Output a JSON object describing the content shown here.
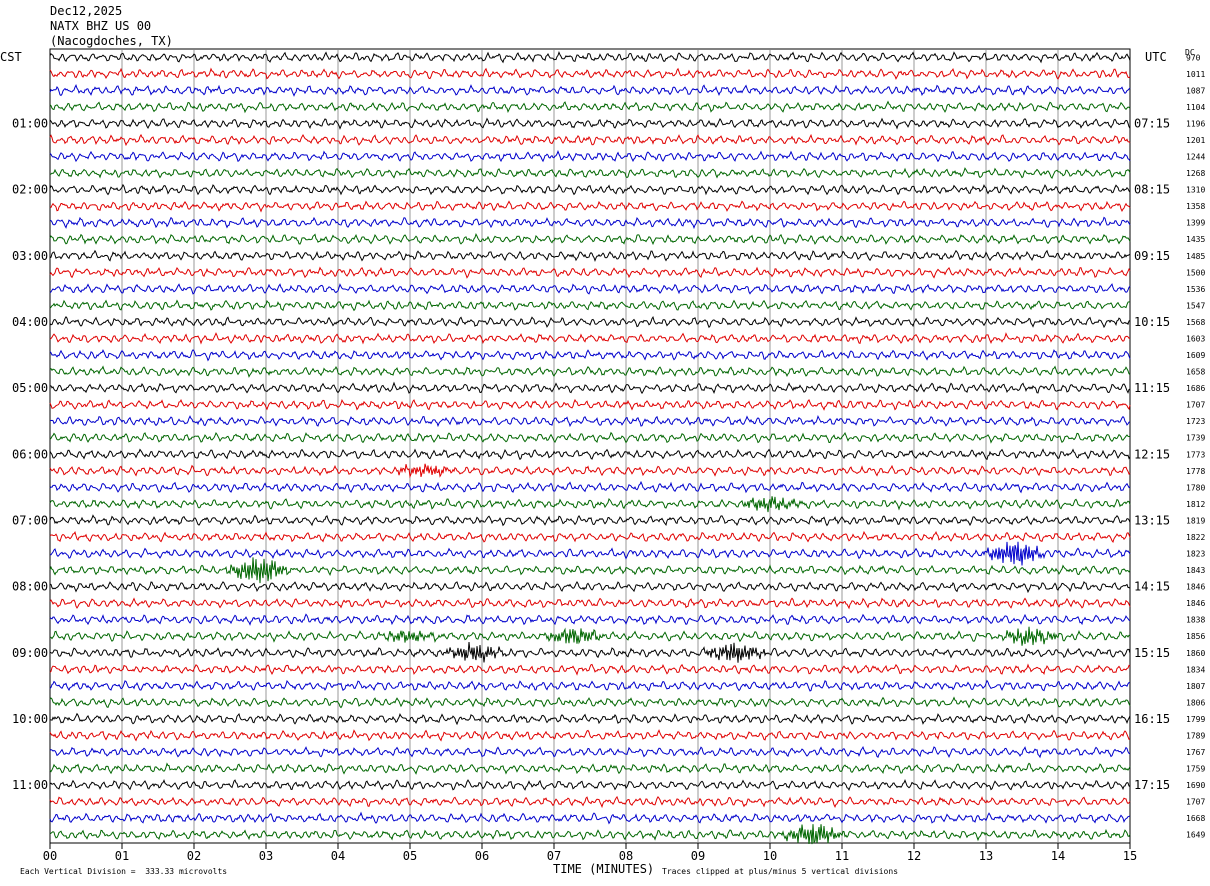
{
  "header": {
    "date": "Dec12,2025",
    "station": "NATX BHZ US 00",
    "location": "(Nacogdoches, TX)"
  },
  "left_timezone": "CST",
  "right_timezone": "UTC",
  "dc_label": "DC",
  "footer": {
    "scale_note": "Each Vertical Division =  333.33 microvolts",
    "clip_note": "Traces clipped at plus/minus 5 vertical divisions"
  },
  "colors": {
    "trace_cycle": [
      "#000000",
      "#e00000",
      "#0000cc",
      "#006600"
    ],
    "grid": "#808080"
  },
  "chart_data": {
    "type": "line",
    "title": "NATX BHZ US 00",
    "xlabel": "TIME (MINUTES)",
    "x_ticks": [
      "00",
      "01",
      "02",
      "03",
      "04",
      "05",
      "06",
      "07",
      "08",
      "09",
      "10",
      "11",
      "12",
      "13",
      "14",
      "15"
    ],
    "xlim": [
      0,
      15
    ],
    "trace_count": 48,
    "left_hour_labels": [
      {
        "trace": 4,
        "label": "01:00"
      },
      {
        "trace": 8,
        "label": "02:00"
      },
      {
        "trace": 12,
        "label": "03:00"
      },
      {
        "trace": 16,
        "label": "04:00"
      },
      {
        "trace": 20,
        "label": "05:00"
      },
      {
        "trace": 24,
        "label": "06:00"
      },
      {
        "trace": 28,
        "label": "07:00"
      },
      {
        "trace": 32,
        "label": "08:00"
      },
      {
        "trace": 36,
        "label": "09:00"
      },
      {
        "trace": 40,
        "label": "10:00"
      },
      {
        "trace": 44,
        "label": "11:00"
      }
    ],
    "right_hour_labels": [
      {
        "trace": 4,
        "label": "07:15"
      },
      {
        "trace": 8,
        "label": "08:15"
      },
      {
        "trace": 12,
        "label": "09:15"
      },
      {
        "trace": 16,
        "label": "10:15"
      },
      {
        "trace": 20,
        "label": "11:15"
      },
      {
        "trace": 24,
        "label": "12:15"
      },
      {
        "trace": 28,
        "label": "13:15"
      },
      {
        "trace": 32,
        "label": "14:15"
      },
      {
        "trace": 36,
        "label": "15:15"
      },
      {
        "trace": 40,
        "label": "16:15"
      },
      {
        "trace": 44,
        "label": "17:15"
      }
    ],
    "dc_offsets": [
      "970",
      "1011",
      "1087",
      "1104",
      "1196",
      "1201",
      "1244",
      "1268",
      "1310",
      "1358",
      "1399",
      "1435",
      "1485",
      "1500",
      "1536",
      "1547",
      "1568",
      "1603",
      "1609",
      "1658",
      "1686",
      "1707",
      "1723",
      "1739",
      "1773",
      "1778",
      "1780",
      "1812",
      "1819",
      "1822",
      "1823",
      "1843",
      "1846",
      "1846",
      "1838",
      "1856",
      "1860",
      "1834",
      "1807",
      "1806",
      "1799",
      "1789",
      "1767",
      "1759",
      "1690",
      "1707",
      "1668",
      "1649"
    ],
    "events": [
      {
        "trace": 27,
        "minute": 10.0,
        "strength": 1.3
      },
      {
        "trace": 30,
        "minute": 13.4,
        "strength": 2.2
      },
      {
        "trace": 31,
        "minute": 2.9,
        "strength": 2.5
      },
      {
        "trace": 35,
        "minute": 5.0,
        "strength": 1.0
      },
      {
        "trace": 35,
        "minute": 7.3,
        "strength": 1.6
      },
      {
        "trace": 35,
        "minute": 13.6,
        "strength": 1.6
      },
      {
        "trace": 36,
        "minute": 5.9,
        "strength": 1.7
      },
      {
        "trace": 36,
        "minute": 9.5,
        "strength": 1.8
      },
      {
        "trace": 25,
        "minute": 5.2,
        "strength": 1.2
      },
      {
        "trace": 47,
        "minute": 10.6,
        "strength": 2.0
      }
    ]
  }
}
